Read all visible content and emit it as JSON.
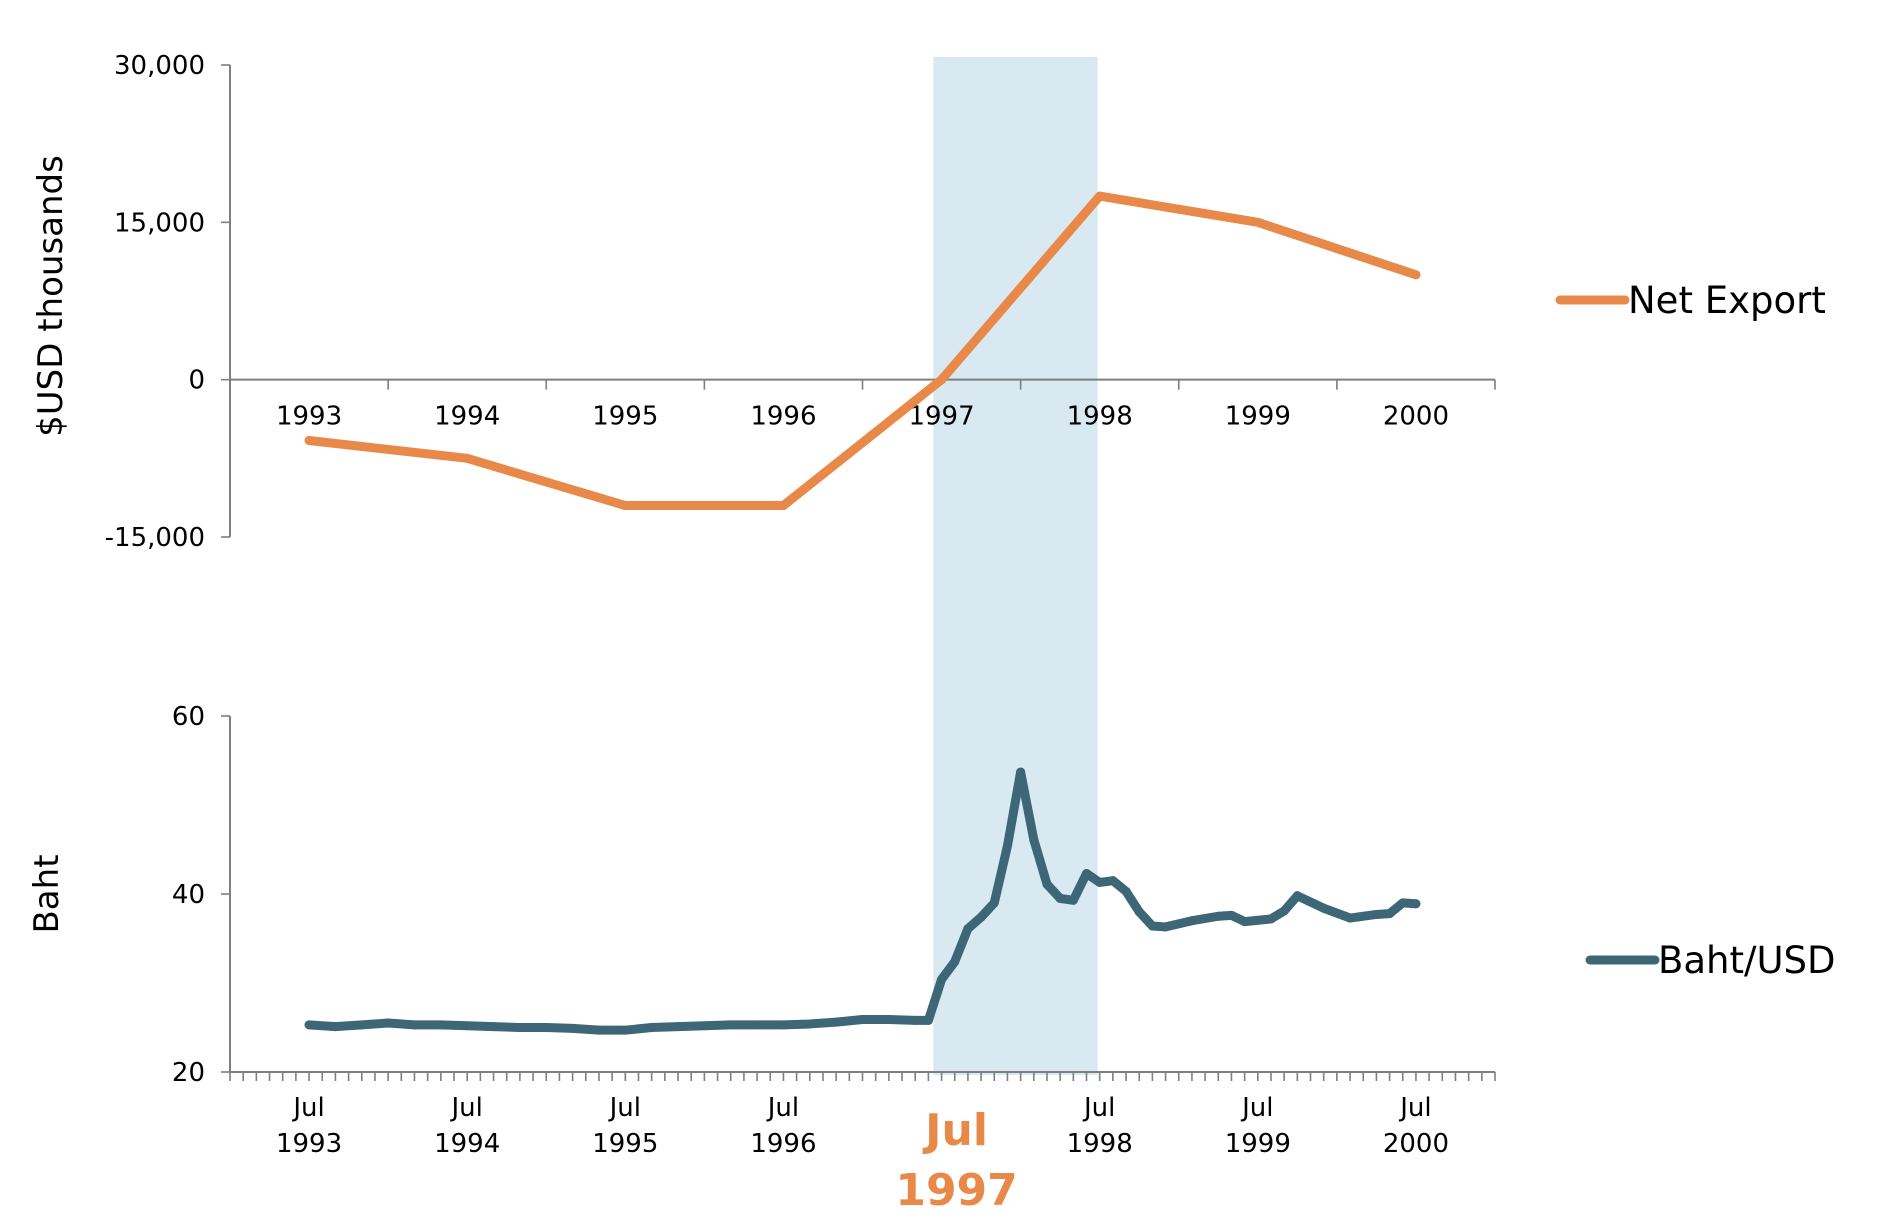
{
  "colors": {
    "net_export": "#e8894a",
    "baht_usd": "#3d6677",
    "highlight_band": "#d8e9f1",
    "highlight_label": "#e8894a",
    "axis": "#7f7f7f"
  },
  "chart_data": [
    {
      "type": "line",
      "ylabel": "$USD thousands",
      "ylim": [
        -15000,
        30000
      ],
      "y_ticks": [
        30000,
        15000,
        0,
        -15000
      ],
      "y_tick_labels": [
        "30,000",
        "15,000",
        "0",
        "-15,000"
      ],
      "categories": [
        "1993",
        "1994",
        "1995",
        "1996",
        "1997",
        "1998",
        "1999",
        "2000"
      ],
      "series": [
        {
          "name": "Net Export",
          "values": [
            -5800,
            -7500,
            -12000,
            -12000,
            0,
            17500,
            15000,
            10000
          ]
        }
      ],
      "legend": "right",
      "highlight_span": {
        "from": "Jul 1997",
        "to": "Jul 1998"
      }
    },
    {
      "type": "line",
      "ylabel": "Baht",
      "ylim": [
        20,
        60
      ],
      "y_ticks": [
        60,
        40,
        20
      ],
      "y_tick_labels": [
        "60",
        "40",
        "20"
      ],
      "x_tick_labels": [
        {
          "month": "Jul",
          "year": "1993",
          "date": "1993-07"
        },
        {
          "month": "Jul",
          "year": "1994",
          "date": "1994-07"
        },
        {
          "month": "Jul",
          "year": "1995",
          "date": "1995-07"
        },
        {
          "month": "Jul",
          "year": "1996",
          "date": "1996-07"
        },
        {
          "month": "Jul",
          "year": "1997",
          "date": "1997-07",
          "highlight": true
        },
        {
          "month": "Jul",
          "year": "1998",
          "date": "1998-07"
        },
        {
          "month": "Jul",
          "year": "1999",
          "date": "1999-07"
        },
        {
          "month": "Jul",
          "year": "2000",
          "date": "2000-07"
        }
      ],
      "series": [
        {
          "name": "Baht/USD",
          "points": [
            [
              "1993-07",
              25.3
            ],
            [
              "1993-09",
              25.1
            ],
            [
              "1993-11",
              25.3
            ],
            [
              "1994-01",
              25.5
            ],
            [
              "1994-03",
              25.3
            ],
            [
              "1994-05",
              25.3
            ],
            [
              "1994-07",
              25.2
            ],
            [
              "1994-09",
              25.1
            ],
            [
              "1994-11",
              25.0
            ],
            [
              "1995-01",
              25.0
            ],
            [
              "1995-03",
              24.9
            ],
            [
              "1995-05",
              24.7
            ],
            [
              "1995-07",
              24.7
            ],
            [
              "1995-09",
              25.0
            ],
            [
              "1995-11",
              25.1
            ],
            [
              "1996-01",
              25.2
            ],
            [
              "1996-03",
              25.3
            ],
            [
              "1996-05",
              25.3
            ],
            [
              "1996-07",
              25.3
            ],
            [
              "1996-09",
              25.4
            ],
            [
              "1996-11",
              25.6
            ],
            [
              "1997-01",
              25.9
            ],
            [
              "1997-03",
              25.9
            ],
            [
              "1997-05",
              25.8
            ],
            [
              "1997-06",
              25.8
            ],
            [
              "1997-07",
              30.4
            ],
            [
              "1997-08",
              32.4
            ],
            [
              "1997-09",
              36.1
            ],
            [
              "1997-10",
              37.4
            ],
            [
              "1997-11",
              39.0
            ],
            [
              "1997-12",
              45.4
            ],
            [
              "1998-01",
              53.7
            ],
            [
              "1998-02",
              46.1
            ],
            [
              "1998-03",
              41.1
            ],
            [
              "1998-04",
              39.5
            ],
            [
              "1998-05",
              39.3
            ],
            [
              "1998-06",
              42.3
            ],
            [
              "1998-07",
              41.3
            ],
            [
              "1998-08",
              41.5
            ],
            [
              "1998-09",
              40.3
            ],
            [
              "1998-10",
              38.0
            ],
            [
              "1998-11",
              36.4
            ],
            [
              "1998-12",
              36.3
            ],
            [
              "1999-02",
              37.0
            ],
            [
              "1999-04",
              37.5
            ],
            [
              "1999-05",
              37.6
            ],
            [
              "1999-06",
              36.9
            ],
            [
              "1999-08",
              37.2
            ],
            [
              "1999-09",
              38.1
            ],
            [
              "1999-10",
              39.8
            ],
            [
              "1999-12",
              38.4
            ],
            [
              "2000-02",
              37.3
            ],
            [
              "2000-04",
              37.7
            ],
            [
              "2000-05",
              37.8
            ],
            [
              "2000-06",
              39.0
            ],
            [
              "2000-07",
              38.9
            ]
          ]
        }
      ],
      "legend": "right",
      "highlight_span": {
        "from": "Jul 1997",
        "to": "Jul 1998"
      }
    }
  ]
}
